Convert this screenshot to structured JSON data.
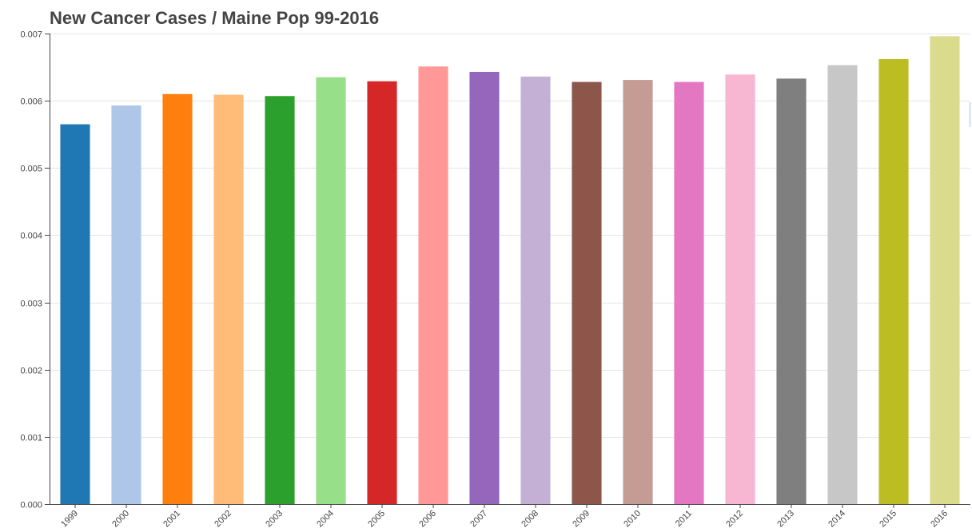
{
  "chart_data": {
    "type": "bar",
    "title": "New Cancer Cases / Maine Pop 99-2016",
    "xlabel": "",
    "ylabel": "",
    "categories": [
      "1999",
      "2000",
      "2001",
      "2002",
      "2003",
      "2004",
      "2005",
      "2006",
      "2007",
      "2008",
      "2009",
      "2010",
      "2011",
      "2012",
      "2013",
      "2014",
      "2015",
      "2016"
    ],
    "values": [
      0.00565,
      0.00593,
      0.0061,
      0.00609,
      0.00607,
      0.00635,
      0.00629,
      0.00651,
      0.00643,
      0.00636,
      0.00628,
      0.00631,
      0.00628,
      0.00639,
      0.00633,
      0.00653,
      0.00662,
      0.00696
    ],
    "colors": [
      "#1f77b4",
      "#aec7e8",
      "#ff7f0e",
      "#ffbb78",
      "#2ca02c",
      "#98df8a",
      "#d62728",
      "#ff9896",
      "#9467bd",
      "#c5b0d5",
      "#8c564b",
      "#c49c94",
      "#e377c2",
      "#f7b6d2",
      "#7f7f7f",
      "#c7c7c7",
      "#bcbd22",
      "#dbdb8d"
    ],
    "ylim": [
      0,
      0.007
    ],
    "yticks": [
      "0.000",
      "0.001",
      "0.002",
      "0.003",
      "0.004",
      "0.005",
      "0.006",
      "0.007"
    ],
    "grid": true,
    "legend": "none"
  }
}
